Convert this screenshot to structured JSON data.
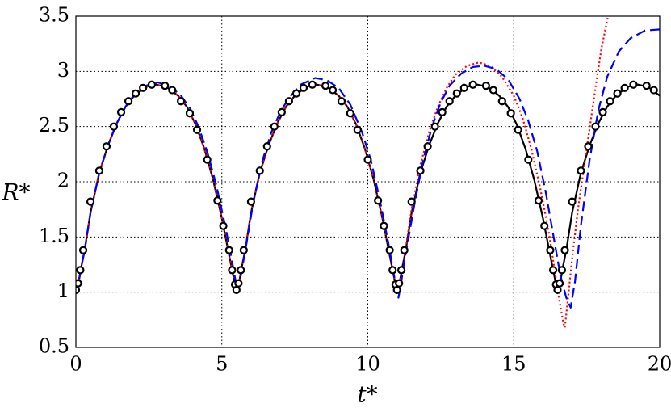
{
  "chart_data": {
    "type": "line",
    "xlabel": "t*",
    "ylabel": "R*",
    "xlim": [
      0,
      20
    ],
    "xticks": [
      0,
      5,
      10,
      15,
      20
    ],
    "ylim": [
      0.5,
      3.5
    ],
    "yticks": [
      0.5,
      1,
      1.5,
      2,
      2.5,
      3,
      3.5
    ],
    "grid": true,
    "series": [
      {
        "color": "#000000",
        "style": "solid",
        "x": [
          0,
          0.1,
          0.2,
          0.3,
          0.5,
          0.8,
          1.1,
          1.4,
          1.7,
          2.0,
          2.4,
          2.75,
          3.1,
          3.5,
          3.8,
          4.1,
          4.4,
          4.7,
          5.0,
          5.2,
          5.35,
          5.45,
          5.5,
          5.6,
          5.7,
          5.8,
          6.0,
          6.3,
          6.6,
          6.9,
          7.2,
          7.5,
          7.9,
          8.25,
          8.6,
          9.0,
          9.3,
          9.6,
          9.9,
          10.2,
          10.5,
          10.7,
          10.85,
          10.95,
          11.0,
          11.1,
          11.2,
          11.3,
          11.5,
          11.8,
          12.1,
          12.4,
          12.7,
          13.0,
          13.4,
          13.75,
          14.1,
          14.5,
          14.8,
          15.1,
          15.4,
          15.7,
          16.0,
          16.2,
          16.35,
          16.45,
          16.5,
          16.6,
          16.7,
          16.8,
          17.0,
          17.3,
          17.6,
          17.9,
          18.2,
          18.5,
          18.9,
          19.25,
          19.6,
          20.0
        ],
        "values": [
          1.0,
          1.1,
          1.25,
          1.38,
          1.72,
          2.08,
          2.33,
          2.53,
          2.68,
          2.78,
          2.86,
          2.88,
          2.86,
          2.78,
          2.68,
          2.52,
          2.3,
          2.02,
          1.67,
          1.4,
          1.2,
          1.07,
          1.0,
          1.1,
          1.25,
          1.38,
          1.72,
          2.08,
          2.33,
          2.53,
          2.68,
          2.78,
          2.86,
          2.88,
          2.86,
          2.78,
          2.68,
          2.52,
          2.3,
          2.02,
          1.67,
          1.4,
          1.2,
          1.07,
          1.0,
          1.1,
          1.25,
          1.38,
          1.72,
          2.08,
          2.33,
          2.53,
          2.68,
          2.78,
          2.86,
          2.88,
          2.86,
          2.78,
          2.68,
          2.52,
          2.3,
          2.02,
          1.67,
          1.4,
          1.2,
          1.07,
          1.0,
          1.1,
          1.25,
          1.38,
          1.72,
          2.08,
          2.33,
          2.53,
          2.68,
          2.78,
          2.86,
          2.88,
          2.86,
          2.78
        ]
      },
      {
        "color": "#ff0000",
        "style": "dotted",
        "x": [
          0,
          0.1,
          0.2,
          0.3,
          0.5,
          0.8,
          1.1,
          1.4,
          1.7,
          2.0,
          2.4,
          2.75,
          3.1,
          3.5,
          3.8,
          4.1,
          4.4,
          4.7,
          5.0,
          5.2,
          5.35,
          5.45,
          5.5,
          5.6,
          5.7,
          5.8,
          6.0,
          6.3,
          6.6,
          6.9,
          7.2,
          7.5,
          7.9,
          8.25,
          8.6,
          9.0,
          9.3,
          9.6,
          9.9,
          10.2,
          10.5,
          10.7,
          10.85,
          10.95,
          11.0,
          11.1,
          11.2,
          11.3,
          11.5,
          11.8,
          12.1,
          12.4,
          12.7,
          13.0,
          13.4,
          13.8,
          14.2,
          14.6,
          15.0,
          15.3,
          15.6,
          15.9,
          16.2,
          16.4,
          16.55,
          16.7,
          16.75,
          16.8,
          16.9,
          17.0,
          17.2,
          17.5,
          17.8,
          18.0,
          18.23
        ],
        "values": [
          1.0,
          1.1,
          1.25,
          1.38,
          1.72,
          2.08,
          2.33,
          2.53,
          2.68,
          2.78,
          2.86,
          2.88,
          2.86,
          2.78,
          2.68,
          2.52,
          2.3,
          2.02,
          1.67,
          1.4,
          1.2,
          1.07,
          1.0,
          1.1,
          1.25,
          1.38,
          1.72,
          2.08,
          2.33,
          2.53,
          2.68,
          2.78,
          2.86,
          2.88,
          2.86,
          2.78,
          2.68,
          2.52,
          2.3,
          2.02,
          1.67,
          1.4,
          1.2,
          1.07,
          1.0,
          1.1,
          1.25,
          1.4,
          1.75,
          2.15,
          2.45,
          2.68,
          2.85,
          2.97,
          3.05,
          3.08,
          3.05,
          2.95,
          2.78,
          2.58,
          2.3,
          1.95,
          1.55,
          1.2,
          0.95,
          0.72,
          0.68,
          0.8,
          1.05,
          1.3,
          1.75,
          2.3,
          2.85,
          3.2,
          3.5
        ]
      },
      {
        "color": "#0000ff",
        "style": "dashed",
        "x": [
          0,
          0.1,
          0.2,
          0.3,
          0.5,
          0.8,
          1.1,
          1.4,
          1.7,
          2.0,
          2.4,
          2.8,
          3.2,
          3.6,
          3.9,
          4.2,
          4.5,
          4.8,
          5.1,
          5.3,
          5.45,
          5.55,
          5.65,
          5.75,
          5.85,
          6.1,
          6.4,
          6.7,
          7.0,
          7.3,
          7.7,
          8.2,
          8.6,
          9.0,
          9.4,
          9.8,
          10.1,
          10.4,
          10.7,
          10.9,
          11.05,
          11.15,
          11.25,
          11.4,
          11.6,
          11.9,
          12.2,
          12.5,
          12.8,
          13.2,
          13.6,
          14.0,
          14.4,
          14.8,
          15.2,
          15.5,
          15.8,
          16.1,
          16.4,
          16.6,
          16.8,
          16.95,
          17.1,
          17.3,
          17.6,
          17.9,
          18.2,
          18.6,
          19.0,
          19.5,
          20.0
        ],
        "values": [
          1.0,
          1.1,
          1.25,
          1.38,
          1.72,
          2.08,
          2.33,
          2.53,
          2.68,
          2.79,
          2.87,
          2.9,
          2.87,
          2.78,
          2.67,
          2.5,
          2.27,
          1.98,
          1.62,
          1.35,
          1.13,
          1.02,
          1.15,
          1.3,
          1.45,
          1.85,
          2.2,
          2.45,
          2.63,
          2.76,
          2.88,
          2.94,
          2.92,
          2.85,
          2.7,
          2.45,
          2.2,
          1.85,
          1.45,
          1.15,
          0.95,
          1.1,
          1.28,
          1.5,
          1.8,
          2.2,
          2.5,
          2.72,
          2.87,
          2.98,
          3.04,
          3.05,
          3.02,
          2.93,
          2.75,
          2.55,
          2.28,
          1.9,
          1.45,
          1.15,
          0.95,
          0.86,
          1.1,
          1.6,
          2.2,
          2.65,
          2.95,
          3.18,
          3.3,
          3.37,
          3.38
        ]
      },
      {
        "color": "#000000",
        "style": "circles",
        "x": [
          0,
          0.07,
          0.15,
          0.25,
          0.5,
          0.8,
          1.05,
          1.3,
          1.55,
          1.8,
          2.05,
          2.3,
          2.6,
          3.05,
          3.3,
          3.6,
          3.9,
          4.15,
          4.5,
          4.85,
          5.05,
          5.25,
          5.35,
          5.45,
          5.5,
          5.57,
          5.65,
          5.75,
          6.0,
          6.3,
          6.55,
          6.8,
          7.05,
          7.3,
          7.55,
          7.8,
          8.1,
          8.55,
          8.8,
          9.1,
          9.4,
          9.65,
          10.0,
          10.35,
          10.55,
          10.75,
          10.85,
          10.95,
          11.0,
          11.07,
          11.15,
          11.25,
          11.5,
          11.8,
          12.05,
          12.3,
          12.55,
          12.8,
          13.05,
          13.3,
          13.6,
          14.05,
          14.3,
          14.6,
          14.9,
          15.15,
          15.5,
          15.85,
          16.05,
          16.25,
          16.35,
          16.45,
          16.5,
          16.57,
          16.65,
          16.75,
          17.0,
          17.3,
          17.55,
          17.8,
          18.05,
          18.3,
          18.55,
          18.8,
          19.1,
          19.55,
          19.8
        ],
        "values": [
          1.02,
          1.08,
          1.2,
          1.38,
          1.82,
          2.1,
          2.32,
          2.5,
          2.63,
          2.73,
          2.8,
          2.85,
          2.88,
          2.87,
          2.83,
          2.73,
          2.62,
          2.47,
          2.2,
          1.83,
          1.6,
          1.38,
          1.2,
          1.07,
          1.02,
          1.08,
          1.2,
          1.38,
          1.82,
          2.1,
          2.32,
          2.5,
          2.63,
          2.73,
          2.8,
          2.85,
          2.88,
          2.87,
          2.83,
          2.73,
          2.62,
          2.47,
          2.2,
          1.83,
          1.6,
          1.38,
          1.2,
          1.07,
          1.02,
          1.08,
          1.2,
          1.38,
          1.82,
          2.1,
          2.32,
          2.5,
          2.63,
          2.73,
          2.8,
          2.85,
          2.88,
          2.87,
          2.83,
          2.73,
          2.62,
          2.47,
          2.2,
          1.83,
          1.6,
          1.38,
          1.2,
          1.07,
          1.02,
          1.08,
          1.2,
          1.38,
          1.82,
          2.1,
          2.32,
          2.5,
          2.63,
          2.73,
          2.8,
          2.85,
          2.88,
          2.87,
          2.83
        ]
      }
    ]
  }
}
